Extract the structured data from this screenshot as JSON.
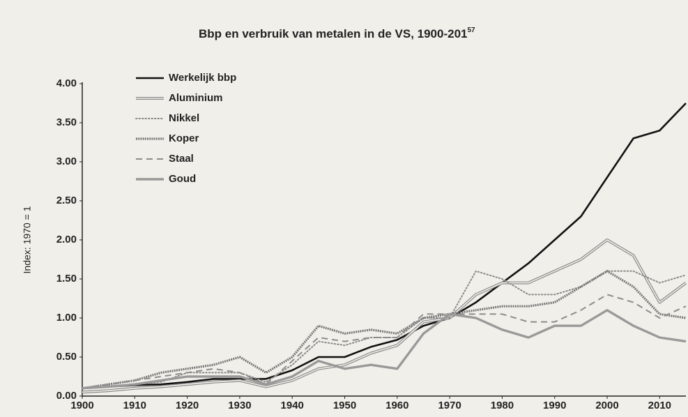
{
  "chart_data": {
    "type": "line",
    "title": "Bbp en verbruik van metalen in de VS, 1900-201",
    "title_footnote": "57",
    "y_label": "Index: 1970 = 1",
    "x": [
      1900,
      1905,
      1910,
      1915,
      1920,
      1925,
      1930,
      1935,
      1940,
      1945,
      1950,
      1955,
      1960,
      1965,
      1970,
      1975,
      1980,
      1985,
      1990,
      1995,
      2000,
      2005,
      2010,
      2015
    ],
    "series": [
      {
        "name": "Werkelijk bbp",
        "color": "#111111",
        "style": "solid",
        "values": [
          0.1,
          0.12,
          0.14,
          0.15,
          0.18,
          0.22,
          0.22,
          0.22,
          0.33,
          0.5,
          0.5,
          0.63,
          0.72,
          0.9,
          1.0,
          1.2,
          1.45,
          1.7,
          2.0,
          2.3,
          2.8,
          3.3,
          3.4,
          3.75
        ]
      },
      {
        "name": "Aluminium",
        "color": "#8a8a8a",
        "style": "double",
        "values": [
          0.05,
          0.07,
          0.1,
          0.12,
          0.15,
          0.18,
          0.2,
          0.12,
          0.2,
          0.35,
          0.4,
          0.55,
          0.65,
          0.95,
          1.0,
          1.3,
          1.45,
          1.45,
          1.6,
          1.75,
          2.0,
          1.8,
          1.2,
          1.45
        ]
      },
      {
        "name": "Nikkel",
        "color": "#888888",
        "style": "dotted",
        "values": [
          0.1,
          0.12,
          0.15,
          0.18,
          0.3,
          0.3,
          0.3,
          0.18,
          0.4,
          0.7,
          0.65,
          0.75,
          0.75,
          1.0,
          1.0,
          1.6,
          1.5,
          1.3,
          1.3,
          1.4,
          1.6,
          1.6,
          1.45,
          1.55
        ]
      },
      {
        "name": "Koper",
        "color": "#777777",
        "style": "beaded",
        "values": [
          0.1,
          0.15,
          0.2,
          0.3,
          0.35,
          0.4,
          0.5,
          0.3,
          0.5,
          0.9,
          0.8,
          0.85,
          0.8,
          1.0,
          1.05,
          1.1,
          1.15,
          1.15,
          1.2,
          1.4,
          1.6,
          1.4,
          1.05,
          1.0
        ]
      },
      {
        "name": "Staal",
        "color": "#8c8c8c",
        "style": "dashed",
        "values": [
          0.1,
          0.15,
          0.2,
          0.25,
          0.3,
          0.35,
          0.3,
          0.15,
          0.45,
          0.75,
          0.7,
          0.75,
          0.75,
          1.05,
          1.05,
          1.05,
          1.05,
          0.95,
          0.95,
          1.1,
          1.3,
          1.2,
          1.0,
          1.15
        ]
      },
      {
        "name": "Goud",
        "color": "#999999",
        "style": "thick",
        "values": [
          0.1,
          0.12,
          0.15,
          0.2,
          0.25,
          0.25,
          0.25,
          0.15,
          0.25,
          0.45,
          0.35,
          0.4,
          0.35,
          0.8,
          1.05,
          1.0,
          0.85,
          0.75,
          0.9,
          0.9,
          1.1,
          0.9,
          0.75,
          0.7
        ]
      }
    ],
    "xlim": [
      1900,
      2015
    ],
    "xticks": [
      1900,
      1910,
      1920,
      1930,
      1940,
      1950,
      1960,
      1970,
      1980,
      1990,
      2000,
      2010
    ],
    "ylim": [
      0,
      4
    ],
    "yticks": [
      {
        "value": 0,
        "label": "0.00"
      },
      {
        "value": 0.5,
        "label": "0.50"
      },
      {
        "value": 1,
        "label": "1.00"
      },
      {
        "value": 1.5,
        "label": "1.50"
      },
      {
        "value": 2,
        "label": "2.00"
      },
      {
        "value": 2.5,
        "label": "2.50"
      },
      {
        "value": 3,
        "label": "3.00"
      },
      {
        "value": 3.5,
        "label": "3.50"
      },
      {
        "value": 4,
        "label": "4.00"
      }
    ],
    "grid": false,
    "legend": "top-left"
  }
}
